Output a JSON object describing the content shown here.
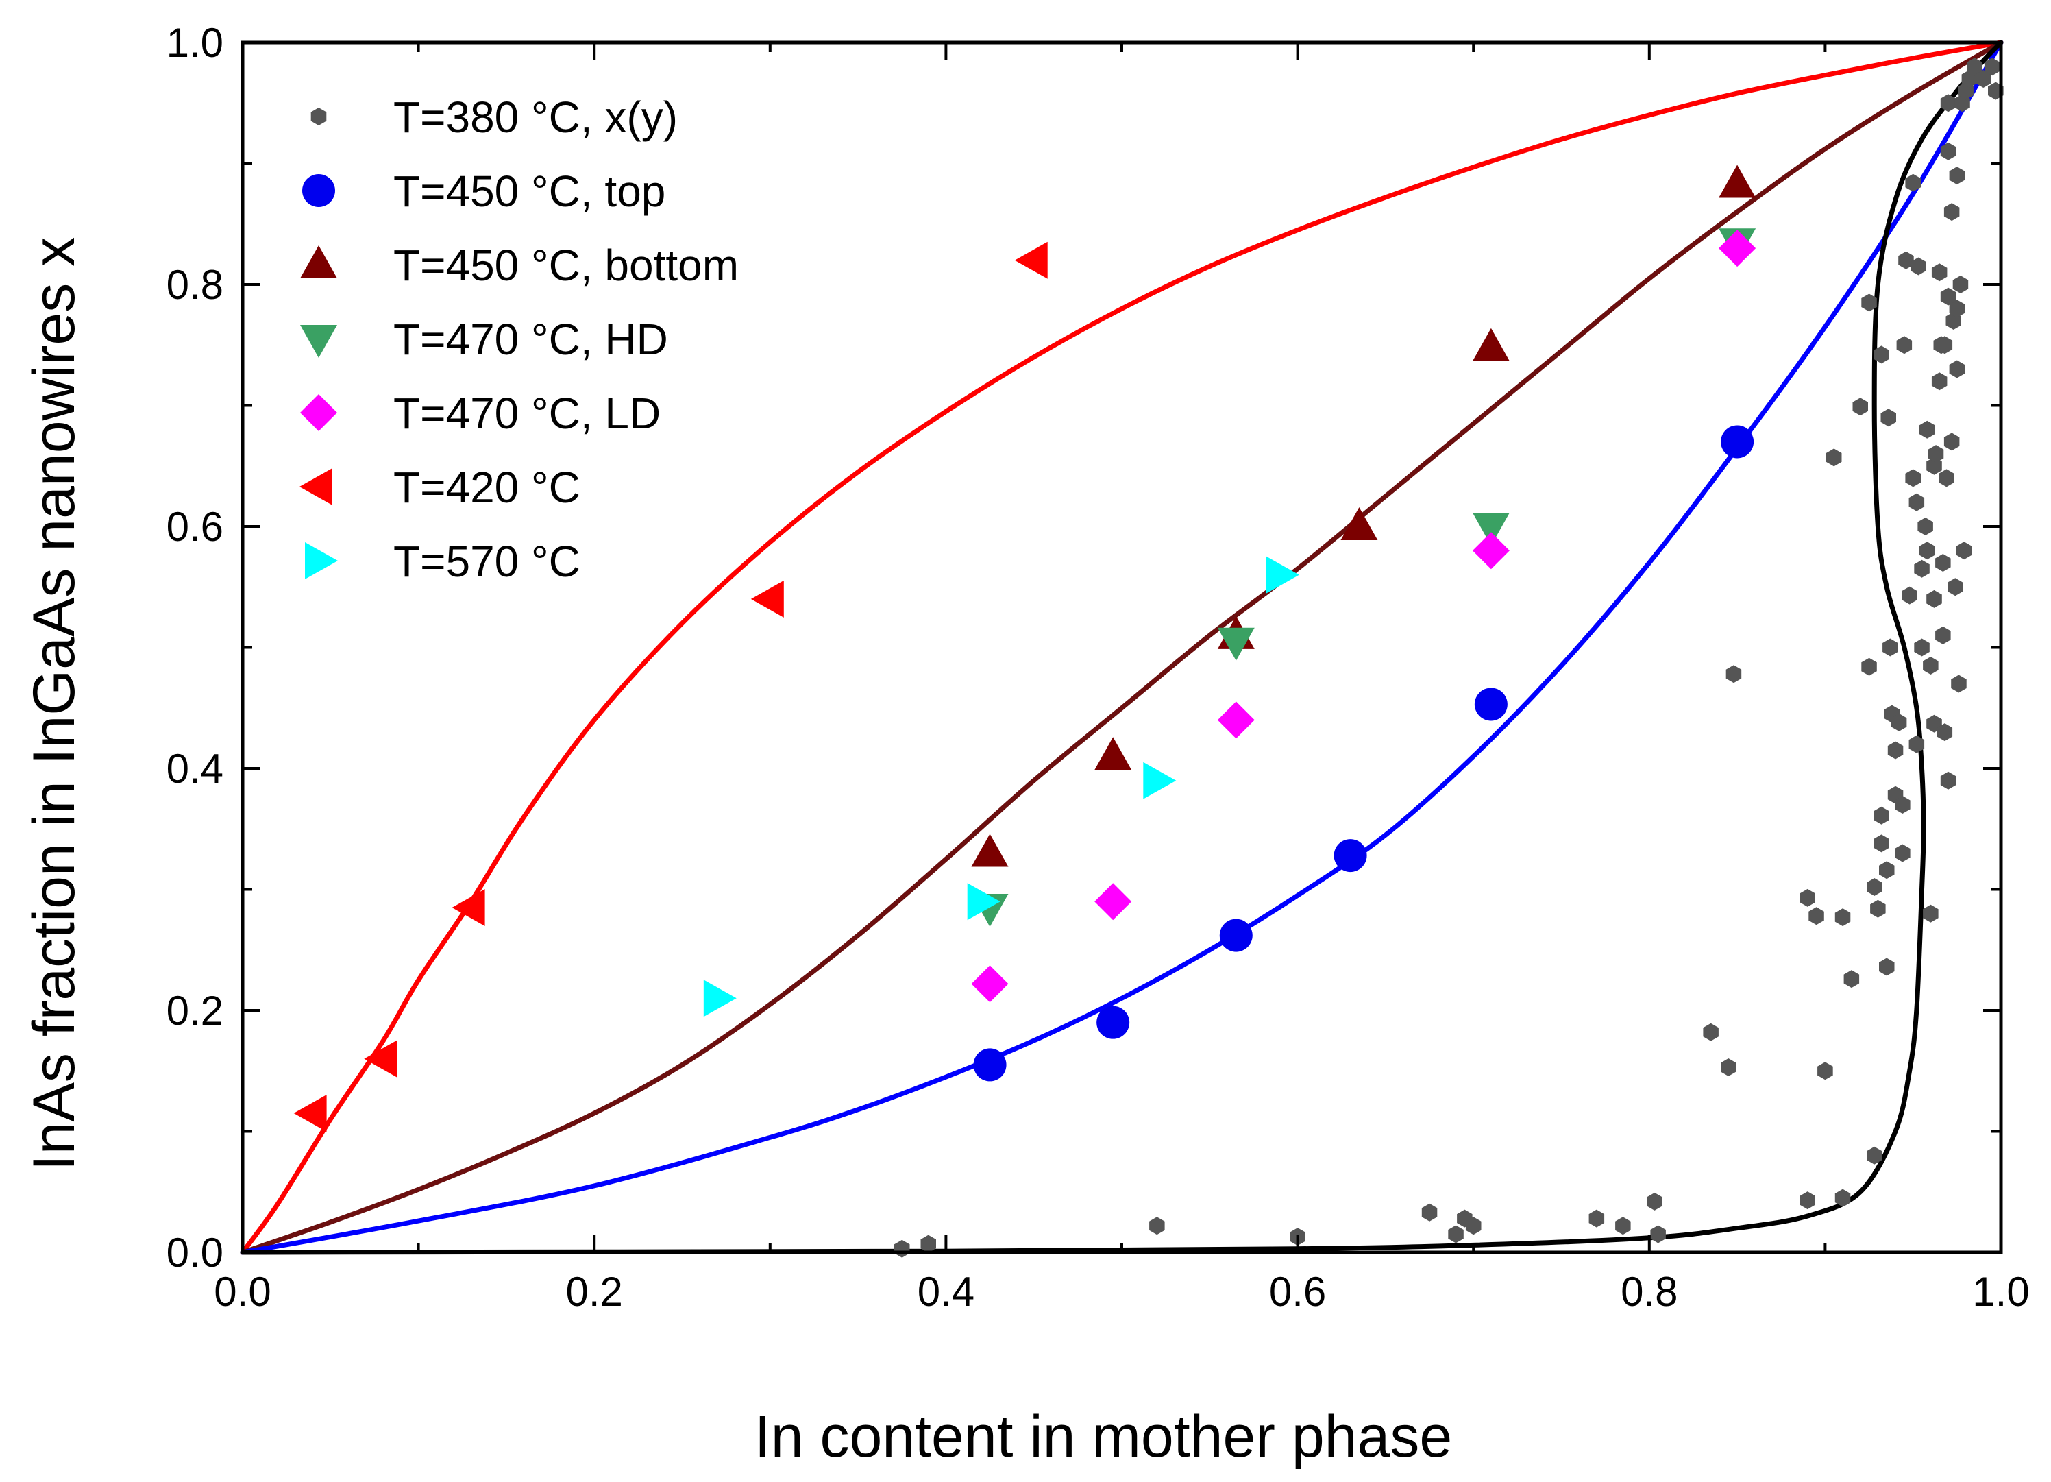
{
  "chart_data": {
    "type": "scatter",
    "xlabel": "In content in mother phase",
    "ylabel": "InAs fraction in InGaAs nanowires x",
    "xlim": [
      0,
      1
    ],
    "ylim": [
      0,
      1
    ],
    "xticks": [
      "0.0",
      "0.2",
      "0.4",
      "0.6",
      "0.8",
      "1.0"
    ],
    "yticks": [
      "0.0",
      "0.2",
      "0.4",
      "0.6",
      "0.8",
      "1.0"
    ],
    "legend_position": "top-left",
    "series": [
      {
        "name": "T=380 °C, x(y)",
        "marker": "hexagon",
        "color": "#555555",
        "points": [
          [
            0.375,
            0.003
          ],
          [
            0.39,
            0.007
          ],
          [
            0.52,
            0.022
          ],
          [
            0.6,
            0.013
          ],
          [
            0.675,
            0.033
          ],
          [
            0.69,
            0.015
          ],
          [
            0.695,
            0.028
          ],
          [
            0.7,
            0.022
          ],
          [
            0.77,
            0.028
          ],
          [
            0.785,
            0.022
          ],
          [
            0.803,
            0.042
          ],
          [
            0.805,
            0.015
          ],
          [
            0.835,
            0.182
          ],
          [
            0.845,
            0.153
          ],
          [
            0.848,
            0.478
          ],
          [
            0.89,
            0.293
          ],
          [
            0.89,
            0.043
          ],
          [
            0.895,
            0.278
          ],
          [
            0.9,
            0.15
          ],
          [
            0.905,
            0.657
          ],
          [
            0.91,
            0.277
          ],
          [
            0.91,
            0.045
          ],
          [
            0.915,
            0.226
          ],
          [
            0.92,
            0.699
          ],
          [
            0.925,
            0.484
          ],
          [
            0.925,
            0.785
          ],
          [
            0.928,
            0.302
          ],
          [
            0.928,
            0.08
          ],
          [
            0.93,
            0.284
          ],
          [
            0.932,
            0.742
          ],
          [
            0.932,
            0.338
          ],
          [
            0.932,
            0.361
          ],
          [
            0.935,
            0.236
          ],
          [
            0.935,
            0.316
          ],
          [
            0.936,
            0.69
          ],
          [
            0.937,
            0.5
          ],
          [
            0.938,
            0.445
          ],
          [
            0.94,
            0.415
          ],
          [
            0.94,
            0.378
          ],
          [
            0.942,
            0.438
          ],
          [
            0.944,
            0.33
          ],
          [
            0.944,
            0.37
          ],
          [
            0.945,
            0.75
          ],
          [
            0.946,
            0.82
          ],
          [
            0.948,
            0.543
          ],
          [
            0.95,
            0.884
          ],
          [
            0.95,
            0.64
          ],
          [
            0.952,
            0.62
          ],
          [
            0.952,
            0.42
          ],
          [
            0.953,
            0.815
          ],
          [
            0.955,
            0.565
          ],
          [
            0.955,
            0.5
          ],
          [
            0.957,
            0.6
          ],
          [
            0.958,
            0.58
          ],
          [
            0.958,
            0.68
          ],
          [
            0.96,
            0.485
          ],
          [
            0.96,
            0.28
          ],
          [
            0.962,
            0.437
          ],
          [
            0.962,
            0.65
          ],
          [
            0.963,
            0.66
          ],
          [
            0.965,
            0.72
          ],
          [
            0.965,
            0.81
          ],
          [
            0.966,
            0.75
          ],
          [
            0.967,
            0.57
          ],
          [
            0.967,
            0.51
          ],
          [
            0.968,
            0.75
          ],
          [
            0.968,
            0.43
          ],
          [
            0.969,
            0.64
          ],
          [
            0.97,
            0.91
          ],
          [
            0.97,
            0.95
          ],
          [
            0.97,
            0.39
          ],
          [
            0.972,
            0.67
          ],
          [
            0.972,
            0.86
          ],
          [
            0.973,
            0.77
          ],
          [
            0.974,
            0.55
          ],
          [
            0.975,
            0.73
          ],
          [
            0.975,
            0.89
          ],
          [
            0.976,
            0.47
          ],
          [
            0.977,
            0.8
          ],
          [
            0.978,
            0.95
          ],
          [
            0.979,
            0.58
          ],
          [
            0.98,
            0.96
          ],
          [
            0.982,
            0.97
          ],
          [
            0.985,
            0.98
          ],
          [
            0.99,
            0.97
          ],
          [
            0.995,
            0.98
          ],
          [
            0.997,
            0.96
          ],
          [
            0.975,
            0.78
          ],
          [
            0.97,
            0.79
          ],
          [
            0.962,
            0.54
          ]
        ]
      },
      {
        "name": "T=450 °C, top",
        "marker": "circle",
        "color": "#0000ee",
        "points": [
          [
            0.425,
            0.155
          ],
          [
            0.495,
            0.19
          ],
          [
            0.565,
            0.262
          ],
          [
            0.63,
            0.328
          ],
          [
            0.71,
            0.453
          ],
          [
            0.85,
            0.67
          ]
        ]
      },
      {
        "name": "T=450 °C, bottom",
        "marker": "triangle-up",
        "color": "#7b0000",
        "points": [
          [
            0.425,
            0.33
          ],
          [
            0.495,
            0.41
          ],
          [
            0.565,
            0.51
          ],
          [
            0.635,
            0.6
          ],
          [
            0.71,
            0.748
          ],
          [
            0.85,
            0.883
          ]
        ]
      },
      {
        "name": "T=470 °C, HD",
        "marker": "triangle-down",
        "color": "#3aa163",
        "points": [
          [
            0.425,
            0.285
          ],
          [
            0.565,
            0.505
          ],
          [
            0.71,
            0.6
          ],
          [
            0.85,
            0.835
          ]
        ]
      },
      {
        "name": "T=470 °C, LD",
        "marker": "diamond",
        "color": "#ff00ff",
        "points": [
          [
            0.425,
            0.222
          ],
          [
            0.495,
            0.29
          ],
          [
            0.565,
            0.44
          ],
          [
            0.71,
            0.58
          ],
          [
            0.85,
            0.83
          ]
        ]
      },
      {
        "name": "T=420 °C",
        "marker": "triangle-left",
        "color": "#ff0000",
        "points": [
          [
            0.04,
            0.115
          ],
          [
            0.08,
            0.16
          ],
          [
            0.13,
            0.285
          ],
          [
            0.3,
            0.54
          ],
          [
            0.45,
            0.82
          ]
        ]
      },
      {
        "name": "T=570 °C",
        "marker": "triangle-right",
        "color": "#00ffff",
        "points": [
          [
            0.27,
            0.21
          ],
          [
            0.42,
            0.29
          ],
          [
            0.52,
            0.39
          ],
          [
            0.59,
            0.56
          ]
        ]
      }
    ],
    "curves": [
      {
        "name": "red fit",
        "color": "#ff0000",
        "points": [
          [
            0,
            0
          ],
          [
            0.02,
            0.04
          ],
          [
            0.05,
            0.11
          ],
          [
            0.08,
            0.175
          ],
          [
            0.1,
            0.225
          ],
          [
            0.13,
            0.29
          ],
          [
            0.16,
            0.36
          ],
          [
            0.2,
            0.44
          ],
          [
            0.25,
            0.52
          ],
          [
            0.3,
            0.587
          ],
          [
            0.35,
            0.645
          ],
          [
            0.4,
            0.695
          ],
          [
            0.45,
            0.74
          ],
          [
            0.5,
            0.78
          ],
          [
            0.55,
            0.815
          ],
          [
            0.6,
            0.845
          ],
          [
            0.65,
            0.872
          ],
          [
            0.7,
            0.897
          ],
          [
            0.75,
            0.92
          ],
          [
            0.8,
            0.94
          ],
          [
            0.85,
            0.958
          ],
          [
            0.9,
            0.973
          ],
          [
            0.95,
            0.987
          ],
          [
            1.0,
            1.0
          ]
        ]
      },
      {
        "name": "dark red fit",
        "color": "#6b0f0f",
        "points": [
          [
            0,
            0
          ],
          [
            0.05,
            0.025
          ],
          [
            0.1,
            0.052
          ],
          [
            0.15,
            0.082
          ],
          [
            0.2,
            0.115
          ],
          [
            0.25,
            0.155
          ],
          [
            0.3,
            0.205
          ],
          [
            0.35,
            0.262
          ],
          [
            0.4,
            0.325
          ],
          [
            0.45,
            0.39
          ],
          [
            0.5,
            0.45
          ],
          [
            0.55,
            0.51
          ],
          [
            0.6,
            0.565
          ],
          [
            0.65,
            0.625
          ],
          [
            0.7,
            0.685
          ],
          [
            0.75,
            0.745
          ],
          [
            0.8,
            0.805
          ],
          [
            0.85,
            0.86
          ],
          [
            0.9,
            0.912
          ],
          [
            0.95,
            0.958
          ],
          [
            1.0,
            1.0
          ]
        ]
      },
      {
        "name": "blue fit",
        "color": "#0000ff",
        "points": [
          [
            0,
            0
          ],
          [
            0.1,
            0.026
          ],
          [
            0.2,
            0.055
          ],
          [
            0.3,
            0.095
          ],
          [
            0.35,
            0.118
          ],
          [
            0.4,
            0.145
          ],
          [
            0.45,
            0.175
          ],
          [
            0.5,
            0.21
          ],
          [
            0.55,
            0.25
          ],
          [
            0.6,
            0.295
          ],
          [
            0.65,
            0.345
          ],
          [
            0.7,
            0.41
          ],
          [
            0.75,
            0.485
          ],
          [
            0.8,
            0.57
          ],
          [
            0.85,
            0.665
          ],
          [
            0.9,
            0.765
          ],
          [
            0.95,
            0.875
          ],
          [
            1.0,
            1.0
          ]
        ]
      },
      {
        "name": "black fit",
        "color": "#000000",
        "points": [
          [
            0,
            0
          ],
          [
            0.4,
            0.001
          ],
          [
            0.6,
            0.003
          ],
          [
            0.7,
            0.006
          ],
          [
            0.8,
            0.012
          ],
          [
            0.85,
            0.02
          ],
          [
            0.89,
            0.03
          ],
          [
            0.92,
            0.05
          ],
          [
            0.94,
            0.1
          ],
          [
            0.948,
            0.15
          ],
          [
            0.952,
            0.2
          ],
          [
            0.955,
            0.3
          ],
          [
            0.956,
            0.35
          ],
          [
            0.955,
            0.4
          ],
          [
            0.952,
            0.45
          ],
          [
            0.945,
            0.5
          ],
          [
            0.935,
            0.55
          ],
          [
            0.93,
            0.6
          ],
          [
            0.928,
            0.7
          ],
          [
            0.93,
            0.8
          ],
          [
            0.94,
            0.87
          ],
          [
            0.955,
            0.92
          ],
          [
            0.975,
            0.96
          ],
          [
            0.99,
            0.985
          ],
          [
            1.0,
            1.0
          ]
        ]
      }
    ]
  }
}
